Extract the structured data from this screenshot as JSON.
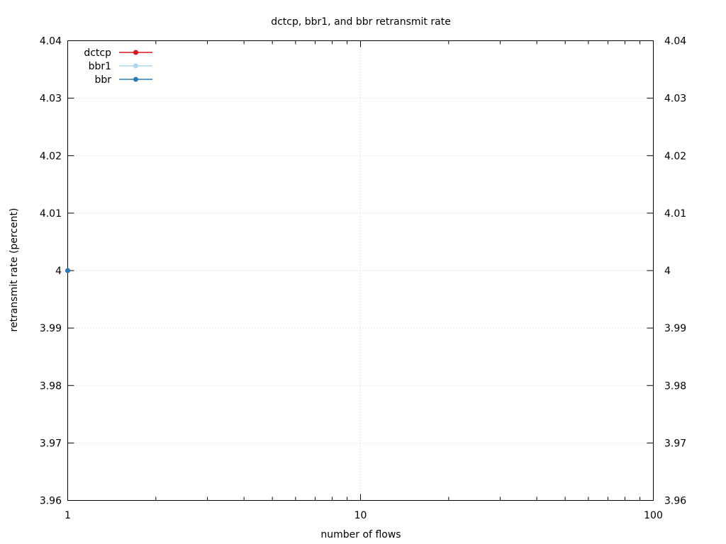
{
  "chart_data": {
    "type": "line",
    "title": "dctcp, bbr1, and bbr retransmit rate",
    "xlabel": "number of flows",
    "ylabel": "retransmit rate (percent)",
    "x_scale": "log",
    "xlim": [
      1,
      100
    ],
    "ylim": [
      3.96,
      4.04
    ],
    "x_ticks": [
      1,
      10,
      100
    ],
    "x_tick_labels": [
      "1",
      "10",
      "100"
    ],
    "y_ticks": [
      3.96,
      3.97,
      3.98,
      3.99,
      4,
      4.01,
      4.02,
      4.03,
      4.04
    ],
    "y_tick_labels": [
      "3.96",
      "3.97",
      "3.98",
      "3.99",
      "4",
      "4.01",
      "4.02",
      "4.03",
      "4.04"
    ],
    "grid": true,
    "legend_position": "top-left",
    "series": [
      {
        "name": "dctcp",
        "color": "#d7191c",
        "x": [
          1
        ],
        "y": [
          4
        ]
      },
      {
        "name": "bbr1",
        "color": "#abd9e9",
        "x": [
          1
        ],
        "y": [
          4
        ]
      },
      {
        "name": "bbr",
        "color": "#2c7bb6",
        "x": [
          1
        ],
        "y": [
          4
        ]
      }
    ]
  }
}
